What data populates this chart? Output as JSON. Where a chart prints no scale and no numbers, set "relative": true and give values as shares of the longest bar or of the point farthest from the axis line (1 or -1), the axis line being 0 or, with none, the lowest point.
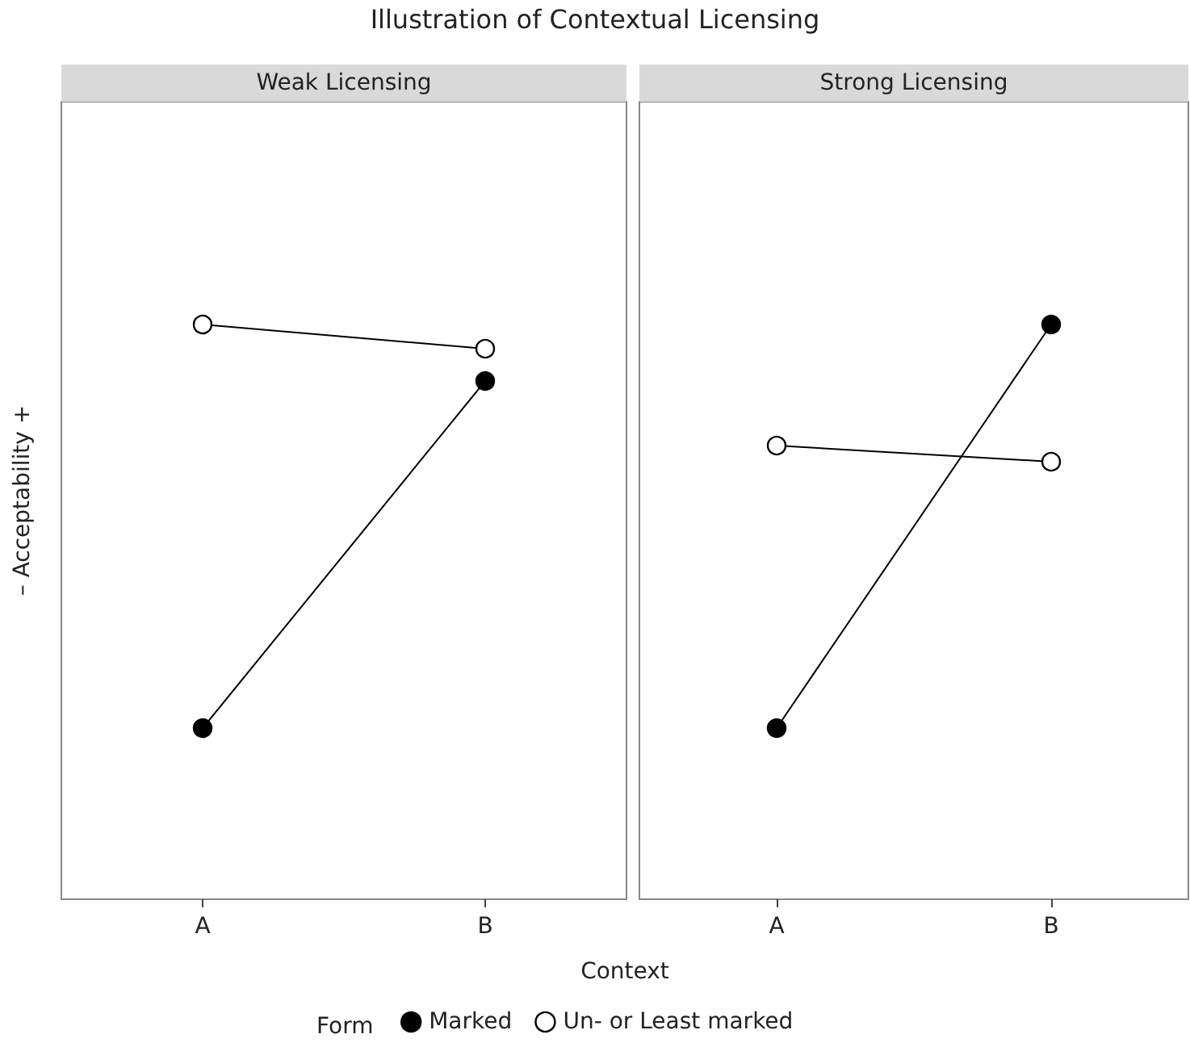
{
  "chart_data": [
    {
      "type": "line",
      "title": "Illustration of Contextual Licensing",
      "subtitle": "Weak Licensing",
      "ylabel": "– Acceptability +",
      "relative": true,
      "marker": "circle",
      "line_style": "solid",
      "categories": [
        "A",
        "B"
      ],
      "series": [
        {
          "color": "#000000",
          "values": [
            0,
            0.86
          ]
        },
        {
          "color": "#ffffff",
          "values": [
            1,
            0.94
          ]
        }
      ]
    },
    {
      "type": "line",
      "subtitle": "Strong Licensing",
      "xlabel": "Context",
      "legend": "bottom",
      "legend_title": "Form",
      "relative": true,
      "marker": "circle",
      "line_style": "solid",
      "categories": [
        "A",
        "B"
      ],
      "series": [
        {
          "name": "Marked",
          "color": "#000000",
          "values": [
            0,
            1
          ]
        },
        {
          "name": "Un- or Least marked",
          "color": "#ffffff",
          "values": [
            0.7,
            0.66
          ]
        }
      ]
    }
  ]
}
